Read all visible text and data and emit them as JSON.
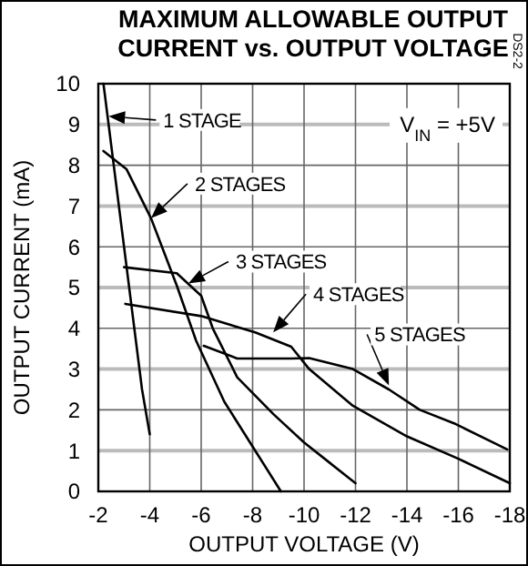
{
  "chart_data": {
    "type": "line",
    "title": "MAXIMUM ALLOWABLE OUTPUT CURRENT vs. OUTPUT VOLTAGE",
    "xlabel": "OUTPUT VOLTAGE (V)",
    "ylabel": "OUTPUT CURRENT (mA)",
    "xlim": [
      -2,
      -18
    ],
    "xticks": [
      -2,
      -4,
      -6,
      -8,
      -10,
      -12,
      -14,
      -16,
      -18
    ],
    "ylim": [
      0,
      10
    ],
    "yticks": [
      0,
      1,
      2,
      3,
      4,
      5,
      6,
      7,
      8,
      9,
      10
    ],
    "grid": true,
    "marker": "none",
    "line_style": "solid",
    "series": [
      {
        "color": "#000000",
        "x": [
          -2.2,
          -2.6,
          -3.0,
          -3.4,
          -3.7,
          -4.0
        ],
        "values": [
          10,
          8,
          6,
          4,
          2.5,
          1.4
        ]
      },
      {
        "color": "#000000",
        "x": [
          -2.2,
          -3.1,
          -4.05,
          -5.05,
          -5.8,
          -6.9,
          -8.1,
          -9.1
        ],
        "values": [
          8.35,
          7.9,
          6.7,
          5.05,
          3.7,
          2.2,
          1.0,
          0
        ]
      },
      {
        "color": "#000000",
        "x": [
          -3.0,
          -5.05,
          -6.0,
          -6.45,
          -7.4,
          -8.8,
          -10,
          -11,
          -12
        ],
        "values": [
          5.5,
          5.35,
          4.8,
          4.0,
          2.8,
          1.9,
          1.2,
          0.7,
          0.2
        ]
      },
      {
        "color": "#000000",
        "x": [
          -3.05,
          -6.0,
          -8.1,
          -9.5,
          -10.2,
          -11.9,
          -14,
          -16,
          -18
        ],
        "values": [
          4.6,
          4.3,
          3.9,
          3.55,
          3.0,
          2.1,
          1.35,
          0.8,
          0.2
        ]
      },
      {
        "color": "#000000",
        "x": [
          -6.1,
          -7.4,
          -9.5,
          -10.2,
          -11.9,
          -13.3,
          -14.5,
          -15.9,
          -17.9
        ],
        "values": [
          3.57,
          3.26,
          3.26,
          3.27,
          3.0,
          2.5,
          2.0,
          1.65,
          1.03
        ]
      }
    ],
    "annotations": [
      {
        "text": "1 STAGE",
        "x": -2.4,
        "y": 9.2
      },
      {
        "text": "2 STAGES",
        "x": -4.05,
        "y": 6.7
      },
      {
        "text": "3 STAGES",
        "x": -5.5,
        "y": 5.1
      },
      {
        "text": "4 STAGES",
        "x": -8.8,
        "y": 3.9
      },
      {
        "text": "5 STAGES",
        "x": -13.3,
        "y": 2.6
      },
      "V$_{IN}$ = +5V",
      "DS2-2"
    ]
  }
}
